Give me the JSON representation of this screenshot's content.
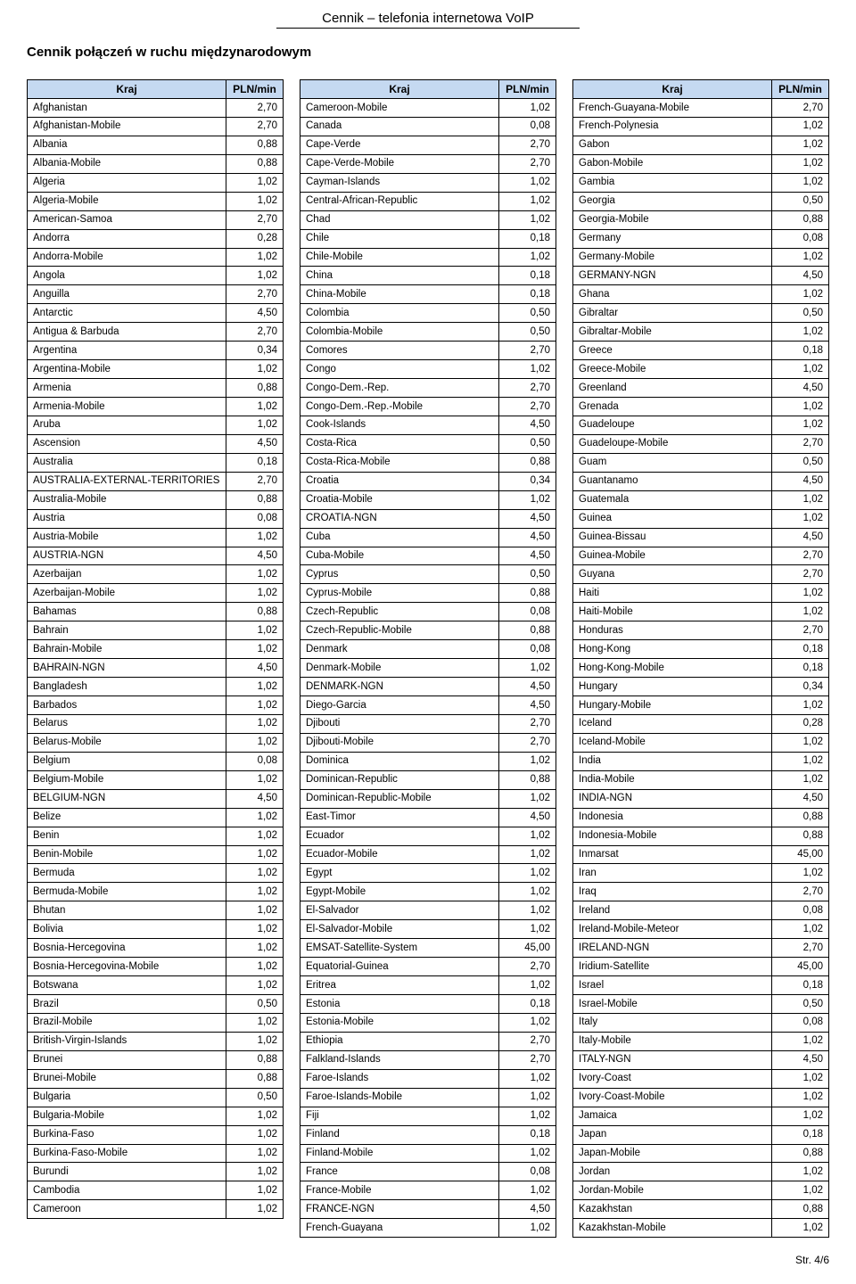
{
  "page_title": "Cennik – telefonia internetowa VoIP",
  "section_header": "Cennik połączeń w ruchu międzynarodowym",
  "header_country": "Kraj",
  "header_price": "PLN/min",
  "footer": "Str. 4/6",
  "colors": {
    "header_bg": "#c5d9f1",
    "border": "#000000",
    "text": "#000000",
    "page_bg": "#ffffff"
  },
  "table1": [
    [
      "Afghanistan",
      "2,70"
    ],
    [
      "Afghanistan-Mobile",
      "2,70"
    ],
    [
      "Albania",
      "0,88"
    ],
    [
      "Albania-Mobile",
      "0,88"
    ],
    [
      "Algeria",
      "1,02"
    ],
    [
      "Algeria-Mobile",
      "1,02"
    ],
    [
      "American-Samoa",
      "2,70"
    ],
    [
      "Andorra",
      "0,28"
    ],
    [
      "Andorra-Mobile",
      "1,02"
    ],
    [
      "Angola",
      "1,02"
    ],
    [
      "Anguilla",
      "2,70"
    ],
    [
      "Antarctic",
      "4,50"
    ],
    [
      "Antigua & Barbuda",
      "2,70"
    ],
    [
      "Argentina",
      "0,34"
    ],
    [
      "Argentina-Mobile",
      "1,02"
    ],
    [
      "Armenia",
      "0,88"
    ],
    [
      "Armenia-Mobile",
      "1,02"
    ],
    [
      "Aruba",
      "1,02"
    ],
    [
      "Ascension",
      "4,50"
    ],
    [
      "Australia",
      "0,18"
    ],
    [
      "AUSTRALIA-EXTERNAL-TERRITORIES",
      "2,70"
    ],
    [
      "Australia-Mobile",
      "0,88"
    ],
    [
      "Austria",
      "0,08"
    ],
    [
      "Austria-Mobile",
      "1,02"
    ],
    [
      "AUSTRIA-NGN",
      "4,50"
    ],
    [
      "Azerbaijan",
      "1,02"
    ],
    [
      "Azerbaijan-Mobile",
      "1,02"
    ],
    [
      "Bahamas",
      "0,88"
    ],
    [
      "Bahrain",
      "1,02"
    ],
    [
      "Bahrain-Mobile",
      "1,02"
    ],
    [
      "BAHRAIN-NGN",
      "4,50"
    ],
    [
      "Bangladesh",
      "1,02"
    ],
    [
      "Barbados",
      "1,02"
    ],
    [
      "Belarus",
      "1,02"
    ],
    [
      "Belarus-Mobile",
      "1,02"
    ],
    [
      "Belgium",
      "0,08"
    ],
    [
      "Belgium-Mobile",
      "1,02"
    ],
    [
      "BELGIUM-NGN",
      "4,50"
    ],
    [
      "Belize",
      "1,02"
    ],
    [
      "Benin",
      "1,02"
    ],
    [
      "Benin-Mobile",
      "1,02"
    ],
    [
      "Bermuda",
      "1,02"
    ],
    [
      "Bermuda-Mobile",
      "1,02"
    ],
    [
      "Bhutan",
      "1,02"
    ],
    [
      "Bolivia",
      "1,02"
    ],
    [
      "Bosnia-Hercegovina",
      "1,02"
    ],
    [
      "Bosnia-Hercegovina-Mobile",
      "1,02"
    ],
    [
      "Botswana",
      "1,02"
    ],
    [
      "Brazil",
      "0,50"
    ],
    [
      "Brazil-Mobile",
      "1,02"
    ],
    [
      "British-Virgin-Islands",
      "1,02"
    ],
    [
      "Brunei",
      "0,88"
    ],
    [
      "Brunei-Mobile",
      "0,88"
    ],
    [
      "Bulgaria",
      "0,50"
    ],
    [
      "Bulgaria-Mobile",
      "1,02"
    ],
    [
      "Burkina-Faso",
      "1,02"
    ],
    [
      "Burkina-Faso-Mobile",
      "1,02"
    ],
    [
      "Burundi",
      "1,02"
    ],
    [
      "Cambodia",
      "1,02"
    ],
    [
      "Cameroon",
      "1,02"
    ]
  ],
  "table2": [
    [
      "Cameroon-Mobile",
      "1,02"
    ],
    [
      "Canada",
      "0,08"
    ],
    [
      "Cape-Verde",
      "2,70"
    ],
    [
      "Cape-Verde-Mobile",
      "2,70"
    ],
    [
      "Cayman-Islands",
      "1,02"
    ],
    [
      "Central-African-Republic",
      "1,02"
    ],
    [
      "Chad",
      "1,02"
    ],
    [
      "Chile",
      "0,18"
    ],
    [
      "Chile-Mobile",
      "1,02"
    ],
    [
      "China",
      "0,18"
    ],
    [
      "China-Mobile",
      "0,18"
    ],
    [
      "Colombia",
      "0,50"
    ],
    [
      "Colombia-Mobile",
      "0,50"
    ],
    [
      "Comores",
      "2,70"
    ],
    [
      "Congo",
      "1,02"
    ],
    [
      "Congo-Dem.-Rep.",
      "2,70"
    ],
    [
      "Congo-Dem.-Rep.-Mobile",
      "2,70"
    ],
    [
      "Cook-Islands",
      "4,50"
    ],
    [
      "Costa-Rica",
      "0,50"
    ],
    [
      "Costa-Rica-Mobile",
      "0,88"
    ],
    [
      "Croatia",
      "0,34"
    ],
    [
      "Croatia-Mobile",
      "1,02"
    ],
    [
      "CROATIA-NGN",
      "4,50"
    ],
    [
      "Cuba",
      "4,50"
    ],
    [
      "Cuba-Mobile",
      "4,50"
    ],
    [
      "Cyprus",
      "0,50"
    ],
    [
      "Cyprus-Mobile",
      "0,88"
    ],
    [
      "Czech-Republic",
      "0,08"
    ],
    [
      "Czech-Republic-Mobile",
      "0,88"
    ],
    [
      "Denmark",
      "0,08"
    ],
    [
      "Denmark-Mobile",
      "1,02"
    ],
    [
      "DENMARK-NGN",
      "4,50"
    ],
    [
      "Diego-Garcia",
      "4,50"
    ],
    [
      "Djibouti",
      "2,70"
    ],
    [
      "Djibouti-Mobile",
      "2,70"
    ],
    [
      "Dominica",
      "1,02"
    ],
    [
      "Dominican-Republic",
      "0,88"
    ],
    [
      "Dominican-Republic-Mobile",
      "1,02"
    ],
    [
      "East-Timor",
      "4,50"
    ],
    [
      "Ecuador",
      "1,02"
    ],
    [
      "Ecuador-Mobile",
      "1,02"
    ],
    [
      "Egypt",
      "1,02"
    ],
    [
      "Egypt-Mobile",
      "1,02"
    ],
    [
      "El-Salvador",
      "1,02"
    ],
    [
      "El-Salvador-Mobile",
      "1,02"
    ],
    [
      "EMSAT-Satellite-System",
      "45,00"
    ],
    [
      "Equatorial-Guinea",
      "2,70"
    ],
    [
      "Eritrea",
      "1,02"
    ],
    [
      "Estonia",
      "0,18"
    ],
    [
      "Estonia-Mobile",
      "1,02"
    ],
    [
      "Ethiopia",
      "2,70"
    ],
    [
      "Falkland-Islands",
      "2,70"
    ],
    [
      "Faroe-Islands",
      "1,02"
    ],
    [
      "Faroe-Islands-Mobile",
      "1,02"
    ],
    [
      "Fiji",
      "1,02"
    ],
    [
      "Finland",
      "0,18"
    ],
    [
      "Finland-Mobile",
      "1,02"
    ],
    [
      "France",
      "0,08"
    ],
    [
      "France-Mobile",
      "1,02"
    ],
    [
      "FRANCE-NGN",
      "4,50"
    ],
    [
      "French-Guayana",
      "1,02"
    ]
  ],
  "table3": [
    [
      "French-Guayana-Mobile",
      "2,70"
    ],
    [
      "French-Polynesia",
      "1,02"
    ],
    [
      "Gabon",
      "1,02"
    ],
    [
      "Gabon-Mobile",
      "1,02"
    ],
    [
      "Gambia",
      "1,02"
    ],
    [
      "Georgia",
      "0,50"
    ],
    [
      "Georgia-Mobile",
      "0,88"
    ],
    [
      "Germany",
      "0,08"
    ],
    [
      "Germany-Mobile",
      "1,02"
    ],
    [
      "GERMANY-NGN",
      "4,50"
    ],
    [
      "Ghana",
      "1,02"
    ],
    [
      "Gibraltar",
      "0,50"
    ],
    [
      "Gibraltar-Mobile",
      "1,02"
    ],
    [
      "Greece",
      "0,18"
    ],
    [
      "Greece-Mobile",
      "1,02"
    ],
    [
      "Greenland",
      "4,50"
    ],
    [
      "Grenada",
      "1,02"
    ],
    [
      "Guadeloupe",
      "1,02"
    ],
    [
      "Guadeloupe-Mobile",
      "2,70"
    ],
    [
      "Guam",
      "0,50"
    ],
    [
      "Guantanamo",
      "4,50"
    ],
    [
      "Guatemala",
      "1,02"
    ],
    [
      "Guinea",
      "1,02"
    ],
    [
      "Guinea-Bissau",
      "4,50"
    ],
    [
      "Guinea-Mobile",
      "2,70"
    ],
    [
      "Guyana",
      "2,70"
    ],
    [
      "Haiti",
      "1,02"
    ],
    [
      "Haiti-Mobile",
      "1,02"
    ],
    [
      "Honduras",
      "2,70"
    ],
    [
      "Hong-Kong",
      "0,18"
    ],
    [
      "Hong-Kong-Mobile",
      "0,18"
    ],
    [
      "Hungary",
      "0,34"
    ],
    [
      "Hungary-Mobile",
      "1,02"
    ],
    [
      "Iceland",
      "0,28"
    ],
    [
      "Iceland-Mobile",
      "1,02"
    ],
    [
      "India",
      "1,02"
    ],
    [
      "India-Mobile",
      "1,02"
    ],
    [
      "INDIA-NGN",
      "4,50"
    ],
    [
      "Indonesia",
      "0,88"
    ],
    [
      "Indonesia-Mobile",
      "0,88"
    ],
    [
      "Inmarsat",
      "45,00"
    ],
    [
      "Iran",
      "1,02"
    ],
    [
      "Iraq",
      "2,70"
    ],
    [
      "Ireland",
      "0,08"
    ],
    [
      "Ireland-Mobile-Meteor",
      "1,02"
    ],
    [
      "IRELAND-NGN",
      "2,70"
    ],
    [
      "Iridium-Satellite",
      "45,00"
    ],
    [
      "Israel",
      "0,18"
    ],
    [
      "Israel-Mobile",
      "0,50"
    ],
    [
      "Italy",
      "0,08"
    ],
    [
      "Italy-Mobile",
      "1,02"
    ],
    [
      "ITALY-NGN",
      "4,50"
    ],
    [
      "Ivory-Coast",
      "1,02"
    ],
    [
      "Ivory-Coast-Mobile",
      "1,02"
    ],
    [
      "Jamaica",
      "1,02"
    ],
    [
      "Japan",
      "0,18"
    ],
    [
      "Japan-Mobile",
      "0,88"
    ],
    [
      "Jordan",
      "1,02"
    ],
    [
      "Jordan-Mobile",
      "1,02"
    ],
    [
      "Kazakhstan",
      "0,88"
    ],
    [
      "Kazakhstan-Mobile",
      "1,02"
    ]
  ]
}
